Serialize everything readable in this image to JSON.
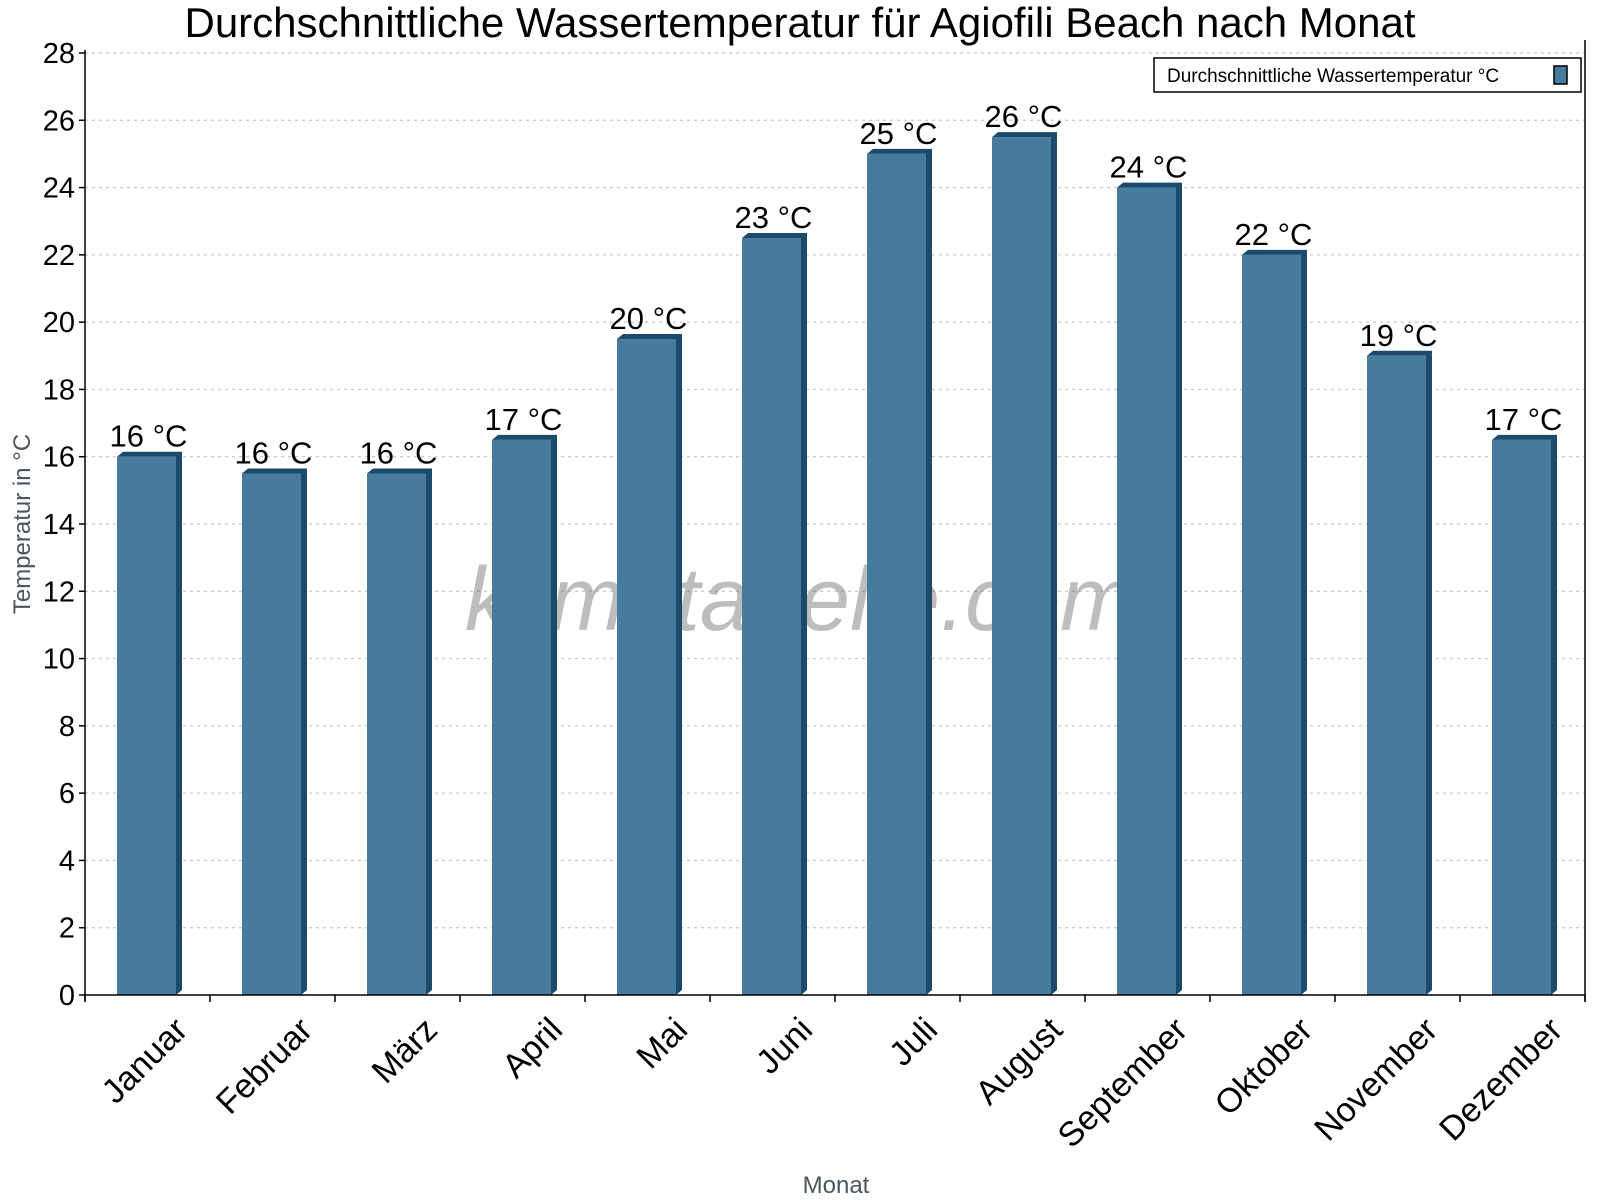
{
  "chart_data": {
    "type": "bar",
    "title": "Durchschnittliche Wassertemperatur für Agiofili Beach nach Monat",
    "xlabel": "Monat",
    "ylabel": "Temperatur in °C",
    "ylim": [
      0,
      28
    ],
    "yticks": [
      0,
      2,
      4,
      6,
      8,
      10,
      12,
      14,
      16,
      18,
      20,
      22,
      24,
      26,
      28
    ],
    "grid": true,
    "legend_position": "top-right",
    "categories": [
      "Januar",
      "Februar",
      "März",
      "April",
      "Mai",
      "Juni",
      "Juli",
      "August",
      "September",
      "Oktober",
      "November",
      "Dezember"
    ],
    "series": [
      {
        "name": "Durchschnittliche Wassertemperatur °C",
        "color": "#467b9d",
        "side_color": "#1b4a6b",
        "values": [
          16,
          15.5,
          15.5,
          16.5,
          19.5,
          22.5,
          25,
          25.5,
          24,
          22,
          19,
          16.5
        ],
        "labels": [
          "16 °C",
          "16 °C",
          "16 °C",
          "17 °C",
          "20 °C",
          "23 °C",
          "25 °C",
          "26 °C",
          "24 °C",
          "22 °C",
          "19 °C",
          "17 °C"
        ]
      }
    ],
    "watermark": "klimatabelle.com"
  }
}
